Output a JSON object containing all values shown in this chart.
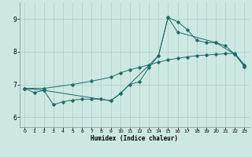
{
  "xlabel": "Humidex (Indice chaleur)",
  "xlim": [
    -0.5,
    23.5
  ],
  "ylim": [
    5.7,
    9.5
  ],
  "yticks": [
    6,
    7,
    8,
    9
  ],
  "xticks": [
    0,
    1,
    2,
    3,
    4,
    5,
    6,
    7,
    8,
    9,
    10,
    11,
    12,
    13,
    14,
    15,
    16,
    17,
    18,
    19,
    20,
    21,
    22,
    23
  ],
  "bg_color": "#cde8e2",
  "grid_color": "#aad0c8",
  "line_color": "#1e6b6b",
  "line1_x": [
    0,
    1,
    2,
    3,
    4,
    5,
    6,
    7,
    8,
    9,
    10,
    11,
    12,
    13,
    14,
    15,
    16,
    17,
    18,
    19,
    20,
    21,
    22,
    23
  ],
  "line1_y": [
    6.88,
    6.75,
    6.82,
    6.38,
    6.47,
    6.52,
    6.55,
    6.55,
    6.55,
    6.5,
    6.72,
    7.0,
    7.08,
    7.52,
    7.88,
    9.05,
    8.92,
    8.68,
    8.35,
    8.28,
    8.28,
    8.18,
    7.92,
    7.55
  ],
  "line2_x": [
    0,
    2,
    5,
    7,
    9,
    10,
    11,
    12,
    13,
    14,
    15,
    16,
    17,
    18,
    19,
    20,
    21,
    22,
    23
  ],
  "line2_y": [
    6.88,
    6.88,
    7.0,
    7.1,
    7.22,
    7.35,
    7.45,
    7.52,
    7.6,
    7.68,
    7.75,
    7.8,
    7.84,
    7.88,
    7.9,
    7.92,
    7.94,
    7.95,
    7.6
  ],
  "line3_x": [
    0,
    2,
    9,
    10,
    14,
    15,
    16,
    20,
    22,
    23
  ],
  "line3_y": [
    6.88,
    6.82,
    6.5,
    6.72,
    7.88,
    9.05,
    8.6,
    8.28,
    7.92,
    7.55
  ]
}
